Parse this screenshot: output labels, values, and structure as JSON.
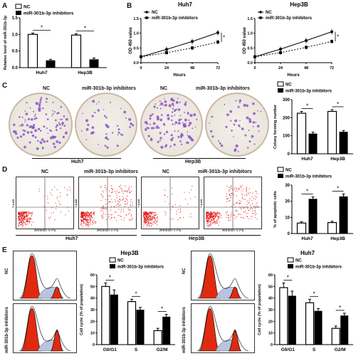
{
  "panels": {
    "a": "A",
    "b": "B",
    "c": "C",
    "d": "D",
    "e": "E"
  },
  "legend": {
    "nc": "NC",
    "inh": "miR-301b-3p inhibitors"
  },
  "sig": "*",
  "panelA": {
    "ylabel": "Relative level of miR-301b-3p",
    "yticks": [
      "0.0",
      "0.5",
      "1.0",
      "1.5"
    ],
    "ymax": 1.5,
    "groups": [
      "Huh7",
      "Hep3B"
    ],
    "nc": [
      1.0,
      0.98
    ],
    "inh": [
      0.22,
      0.25
    ],
    "nc_err": [
      0.04,
      0.04
    ],
    "inh_err": [
      0.03,
      0.04
    ]
  },
  "panelB": {
    "xlabel": "Hours",
    "ylabel": "OD 450 value",
    "xticks": [
      "0",
      "24",
      "48",
      "72"
    ],
    "yticks": [
      "0.0",
      "0.5",
      "1.0",
      "1.5"
    ],
    "charts": [
      {
        "title": "Huh7",
        "x": [
          0,
          24,
          48,
          72
        ],
        "nc": [
          0.2,
          0.45,
          0.72,
          1.02
        ],
        "inh": [
          0.2,
          0.34,
          0.5,
          0.7
        ]
      },
      {
        "title": "Hep3B",
        "x": [
          0,
          24,
          48,
          72
        ],
        "nc": [
          0.2,
          0.46,
          0.75,
          1.05
        ],
        "inh": [
          0.2,
          0.34,
          0.52,
          0.72
        ]
      }
    ]
  },
  "panelC": {
    "plate_labels": [
      "NC",
      "miR-301b-3p inhibitors",
      "NC",
      "miR-301b-3p inhibitors"
    ],
    "cell_lines": [
      "Huh7",
      "Hep3B"
    ],
    "ylabel": "Colony forming number",
    "yticks": [
      "0",
      "100",
      "200",
      "300"
    ],
    "ymax": 300,
    "groups": [
      "Huh7",
      "Hep3B"
    ],
    "nc": [
      225,
      235
    ],
    "inh": [
      112,
      122
    ],
    "nc_err": [
      10,
      10
    ],
    "inh_err": [
      8,
      7
    ]
  },
  "panelD": {
    "plot_labels": [
      "NC",
      "miR-301b-3p inhibitors",
      "NC",
      "miR-301b-3p inhibitors"
    ],
    "axis_x": "Annexin V PE",
    "axis_y": "7-AAD",
    "cell_lines": [
      "Huh7",
      "Hep3B"
    ],
    "ylabel": "% of apoptotic cells",
    "yticks": [
      "0",
      "10",
      "20",
      "30"
    ],
    "ymax": 30,
    "groups": [
      "Huh7",
      "Hep3B"
    ],
    "nc": [
      6.5,
      6.8
    ],
    "inh": [
      21.5,
      23
    ],
    "nc_err": [
      0.8,
      0.8
    ],
    "inh_err": [
      1.2,
      1.5
    ]
  },
  "panelE": {
    "row_labels": [
      "NC",
      "miR-301b-3p inhibitors"
    ],
    "charts": [
      {
        "title": "Hep3B",
        "ylabel": "Cell cycle (% of population)",
        "categories": [
          "G0/G1",
          "S",
          "G2/M"
        ],
        "nc": [
          50,
          37,
          12
        ],
        "inh": [
          43,
          30,
          24
        ],
        "nc_err": [
          3,
          2,
          2
        ],
        "inh_err": [
          4,
          2,
          2
        ]
      },
      {
        "title": "Huh7",
        "ylabel": "Cell cycle (% of population)",
        "categories": [
          "G0/G1",
          "S",
          "G2/M"
        ],
        "nc": [
          49,
          36,
          14
        ],
        "inh": [
          42,
          29,
          25
        ],
        "nc_err": [
          4,
          3,
          2
        ],
        "inh_err": [
          4,
          2,
          2
        ]
      }
    ],
    "yticks": [
      "0",
      "10",
      "20",
      "30",
      "40",
      "50",
      "60"
    ],
    "ymax": 60
  },
  "chart_data": [
    {
      "type": "bar",
      "ylabel": "Relative level of miR-301b-3p",
      "categories": [
        "Huh7",
        "Hep3B"
      ],
      "series": [
        {
          "name": "NC",
          "values": [
            1.0,
            0.98
          ]
        },
        {
          "name": "miR-301b-3p inhibitors",
          "values": [
            0.22,
            0.25
          ]
        }
      ],
      "ylim": [
        0,
        1.5
      ]
    },
    {
      "type": "line",
      "title": "Huh7",
      "xlabel": "Hours",
      "ylabel": "OD 450 value",
      "x": [
        0,
        24,
        48,
        72
      ],
      "series": [
        {
          "name": "NC",
          "values": [
            0.2,
            0.45,
            0.72,
            1.02
          ]
        },
        {
          "name": "miR-301b-3p inhibitors",
          "values": [
            0.2,
            0.34,
            0.5,
            0.7
          ]
        }
      ],
      "ylim": [
        0,
        1.5
      ]
    },
    {
      "type": "line",
      "title": "Hep3B",
      "xlabel": "Hours",
      "ylabel": "OD 450 value",
      "x": [
        0,
        24,
        48,
        72
      ],
      "series": [
        {
          "name": "NC",
          "values": [
            0.2,
            0.46,
            0.75,
            1.05
          ]
        },
        {
          "name": "miR-301b-3p inhibitors",
          "values": [
            0.2,
            0.34,
            0.52,
            0.72
          ]
        }
      ],
      "ylim": [
        0,
        1.5
      ]
    },
    {
      "type": "bar",
      "ylabel": "Colony forming number",
      "categories": [
        "Huh7",
        "Hep3B"
      ],
      "series": [
        {
          "name": "NC",
          "values": [
            225,
            235
          ]
        },
        {
          "name": "miR-301b-3p inhibitors",
          "values": [
            112,
            122
          ]
        }
      ],
      "ylim": [
        0,
        300
      ]
    },
    {
      "type": "bar",
      "ylabel": "% of apoptotic cells",
      "categories": [
        "Huh7",
        "Hep3B"
      ],
      "series": [
        {
          "name": "NC",
          "values": [
            6.5,
            6.8
          ]
        },
        {
          "name": "miR-301b-3p inhibitors",
          "values": [
            21.5,
            23
          ]
        }
      ],
      "ylim": [
        0,
        30
      ]
    },
    {
      "type": "bar",
      "title": "Hep3B",
      "ylabel": "Cell cycle (% of population)",
      "categories": [
        "G0/G1",
        "S",
        "G2/M"
      ],
      "series": [
        {
          "name": "NC",
          "values": [
            50,
            37,
            12
          ]
        },
        {
          "name": "miR-301b-3p inhibitors",
          "values": [
            43,
            30,
            24
          ]
        }
      ],
      "ylim": [
        0,
        60
      ]
    },
    {
      "type": "bar",
      "title": "Huh7",
      "ylabel": "Cell cycle (% of population)",
      "categories": [
        "G0/G1",
        "S",
        "G2/M"
      ],
      "series": [
        {
          "name": "NC",
          "values": [
            49,
            36,
            14
          ]
        },
        {
          "name": "miR-301b-3p inhibitors",
          "values": [
            42,
            29,
            25
          ]
        }
      ],
      "ylim": [
        0,
        60
      ]
    }
  ]
}
